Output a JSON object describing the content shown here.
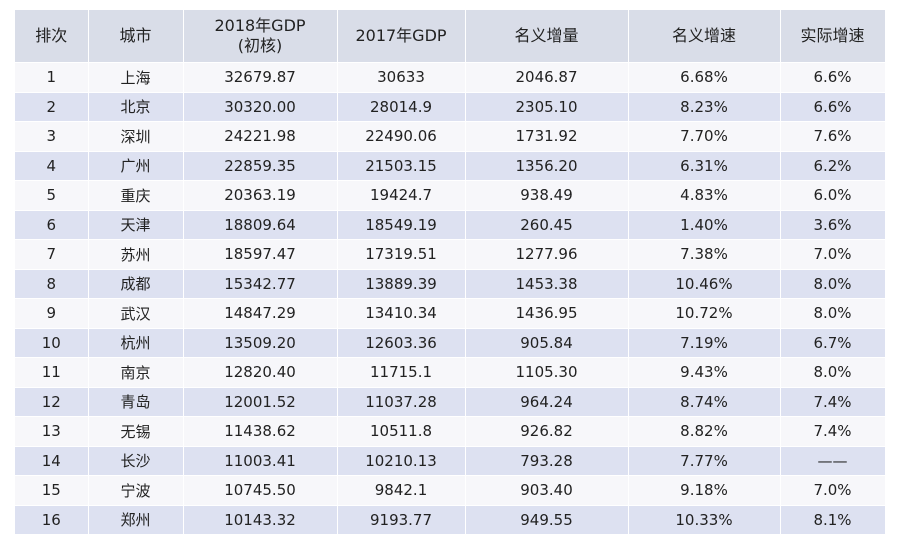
{
  "table": {
    "header": [
      "排次",
      "城市",
      [
        "2018年GDP",
        "(初核)"
      ],
      "2017年GDP",
      "名义增量",
      "名义增速",
      "实际增速"
    ],
    "rows": [
      [
        "1",
        "上海",
        "32679.87",
        "30633",
        "2046.87",
        "6.68%",
        "6.6%"
      ],
      [
        "2",
        "北京",
        "30320.00",
        "28014.9",
        "2305.10",
        "8.23%",
        "6.6%"
      ],
      [
        "3",
        "深圳",
        "24221.98",
        "22490.06",
        "1731.92",
        "7.70%",
        "7.6%"
      ],
      [
        "4",
        "广州",
        "22859.35",
        "21503.15",
        "1356.20",
        "6.31%",
        "6.2%"
      ],
      [
        "5",
        "重庆",
        "20363.19",
        "19424.7",
        "938.49",
        "4.83%",
        "6.0%"
      ],
      [
        "6",
        "天津",
        "18809.64",
        "18549.19",
        "260.45",
        "1.40%",
        "3.6%"
      ],
      [
        "7",
        "苏州",
        "18597.47",
        "17319.51",
        "1277.96",
        "7.38%",
        "7.0%"
      ],
      [
        "8",
        "成都",
        "15342.77",
        "13889.39",
        "1453.38",
        "10.46%",
        "8.0%"
      ],
      [
        "9",
        "武汉",
        "14847.29",
        "13410.34",
        "1436.95",
        "10.72%",
        "8.0%"
      ],
      [
        "10",
        "杭州",
        "13509.20",
        "12603.36",
        "905.84",
        "7.19%",
        "6.7%"
      ],
      [
        "11",
        "南京",
        "12820.40",
        "11715.1",
        "1105.30",
        "9.43%",
        "8.0%"
      ],
      [
        "12",
        "青岛",
        "12001.52",
        "11037.28",
        "964.24",
        "8.74%",
        "7.4%"
      ],
      [
        "13",
        "无锡",
        "11438.62",
        "10511.8",
        "926.82",
        "8.82%",
        "7.4%"
      ],
      [
        "14",
        "长沙",
        "11003.41",
        "10210.13",
        "793.28",
        "7.77%",
        "——"
      ],
      [
        "15",
        "宁波",
        "10745.50",
        "9842.1",
        "903.40",
        "9.18%",
        "7.0%"
      ],
      [
        "16",
        "郑州",
        "10143.32",
        "9193.77",
        "949.55",
        "10.33%",
        "8.1%"
      ]
    ]
  }
}
